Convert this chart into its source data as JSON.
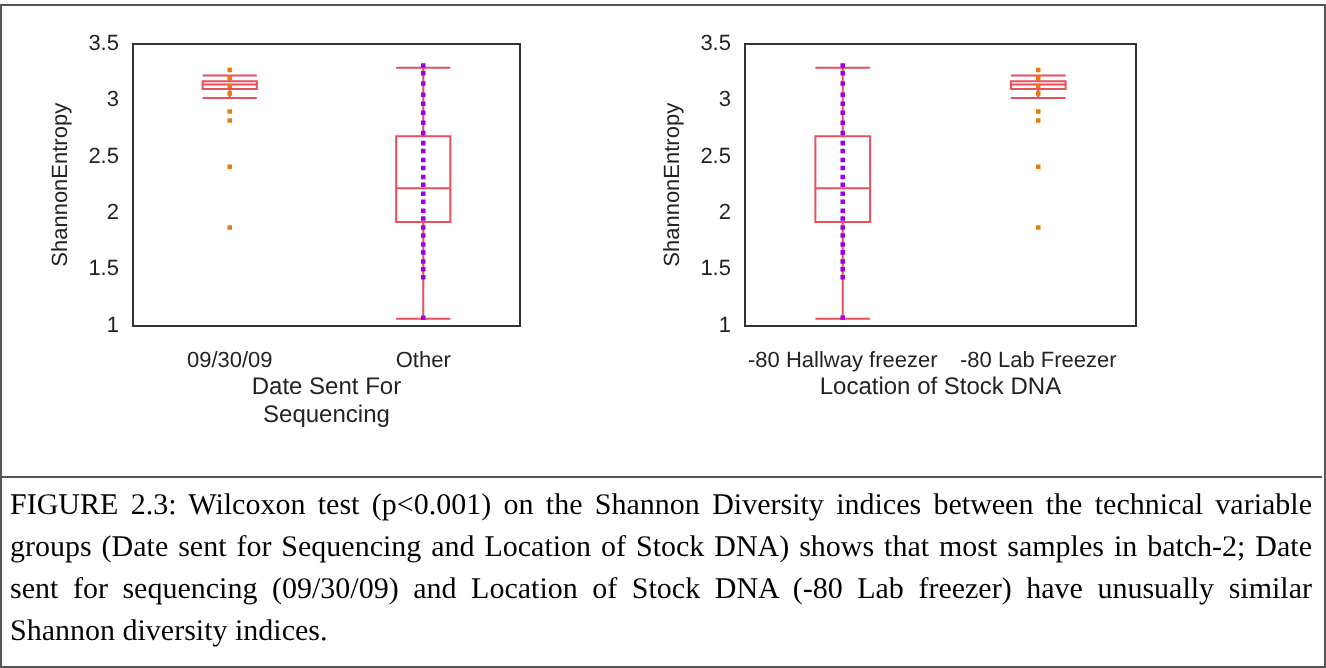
{
  "chart_data": [
    {
      "type": "box",
      "categories": [
        "09/30/09",
        "Other"
      ],
      "xlabel": "Date Sent For Sequencing",
      "ylabel": "ShannonEntropy",
      "ylim": [
        1,
        3.5
      ],
      "yticks": [
        1,
        1.5,
        2,
        2.5,
        3,
        3.5
      ],
      "grid": false,
      "marker": "square",
      "series": [
        {
          "type": "box",
          "color": "#e8505b",
          "boxes": [
            {
              "low": 3.02,
              "q1": 3.1,
              "median": 3.14,
              "q3": 3.17,
              "high": 3.22
            },
            {
              "low": 1.06,
              "q1": 1.92,
              "median": 2.22,
              "q3": 2.68,
              "high": 3.29
            }
          ]
        },
        {
          "type": "scatter",
          "color": "#e87d0d",
          "x": [
            "09/30/09",
            "09/30/09",
            "09/30/09",
            "09/30/09",
            "09/30/09",
            "09/30/09",
            "09/30/09",
            "09/30/09"
          ],
          "values": [
            3.27,
            3.2,
            3.13,
            3.06,
            2.9,
            2.82,
            2.41,
            1.87
          ]
        },
        {
          "type": "scatter",
          "color": "#9b00e8",
          "x": [
            "Other",
            "Other",
            "Other",
            "Other",
            "Other",
            "Other",
            "Other",
            "Other",
            "Other",
            "Other",
            "Other",
            "Other",
            "Other",
            "Other",
            "Other",
            "Other",
            "Other",
            "Other",
            "Other",
            "Other",
            "Other",
            "Other",
            "Other",
            "Other",
            "Other",
            "Other"
          ],
          "values": [
            3.31,
            3.24,
            3.15,
            3.05,
            2.97,
            2.89,
            2.8,
            2.71,
            2.62,
            2.55,
            2.47,
            2.4,
            2.32,
            2.25,
            2.17,
            2.1,
            2.02,
            1.95,
            1.87,
            1.8,
            1.72,
            1.65,
            1.57,
            1.5,
            1.43,
            1.07
          ]
        }
      ],
      "annotations": [
        "FIGURE 2.3: Wilcoxon test (p<0.001) on the Shannon Diversity indices between the technical variable groups (Date sent for Sequencing and Location of Stock DNA) shows that most samples in batch-2; Date sent for sequencing (09/30/09) and Location of Stock DNA (-80 Lab freezer) have unusually similar Shannon diversity indices."
      ]
    },
    {
      "type": "box",
      "categories": [
        "-80 Hallway freezer",
        "-80 Lab Freezer"
      ],
      "xlabel": "Location of Stock DNA",
      "ylabel": "ShannonEntropy",
      "ylim": [
        1,
        3.5
      ],
      "yticks": [
        1,
        1.5,
        2,
        2.5,
        3,
        3.5
      ],
      "grid": false,
      "marker": "square",
      "series": [
        {
          "type": "box",
          "color": "#e8505b",
          "boxes": [
            {
              "low": 1.06,
              "q1": 1.92,
              "median": 2.22,
              "q3": 2.68,
              "high": 3.29
            },
            {
              "low": 3.02,
              "q1": 3.1,
              "median": 3.14,
              "q3": 3.17,
              "high": 3.22
            }
          ]
        },
        {
          "type": "scatter",
          "color": "#9b00e8",
          "x": [
            "-80 Hallway freezer",
            "-80 Hallway freezer",
            "-80 Hallway freezer",
            "-80 Hallway freezer",
            "-80 Hallway freezer",
            "-80 Hallway freezer",
            "-80 Hallway freezer",
            "-80 Hallway freezer",
            "-80 Hallway freezer",
            "-80 Hallway freezer",
            "-80 Hallway freezer",
            "-80 Hallway freezer",
            "-80 Hallway freezer",
            "-80 Hallway freezer",
            "-80 Hallway freezer",
            "-80 Hallway freezer",
            "-80 Hallway freezer",
            "-80 Hallway freezer",
            "-80 Hallway freezer",
            "-80 Hallway freezer",
            "-80 Hallway freezer",
            "-80 Hallway freezer",
            "-80 Hallway freezer",
            "-80 Hallway freezer",
            "-80 Hallway freezer",
            "-80 Hallway freezer"
          ],
          "values": [
            3.31,
            3.24,
            3.15,
            3.05,
            2.97,
            2.89,
            2.8,
            2.71,
            2.62,
            2.55,
            2.47,
            2.4,
            2.32,
            2.25,
            2.17,
            2.1,
            2.02,
            1.95,
            1.87,
            1.8,
            1.72,
            1.65,
            1.57,
            1.5,
            1.43,
            1.07
          ]
        },
        {
          "type": "scatter",
          "color": "#e87d0d",
          "x": [
            "-80 Lab Freezer",
            "-80 Lab Freezer",
            "-80 Lab Freezer",
            "-80 Lab Freezer",
            "-80 Lab Freezer",
            "-80 Lab Freezer",
            "-80 Lab Freezer",
            "-80 Lab Freezer"
          ],
          "values": [
            3.27,
            3.2,
            3.13,
            3.06,
            2.9,
            2.82,
            2.41,
            1.87
          ]
        }
      ]
    }
  ]
}
